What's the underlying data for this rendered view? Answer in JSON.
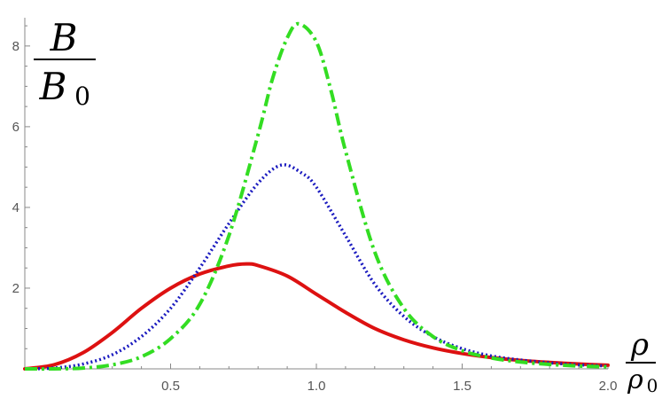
{
  "chart_data": {
    "type": "line",
    "ylabel": {
      "numerator": "B",
      "denominator_base": "B",
      "denominator_sub": "0"
    },
    "xlabel": {
      "numerator": "ρ",
      "denominator_base": "ρ",
      "denominator_sub": "0"
    },
    "xlim": [
      0,
      2.0
    ],
    "ylim": [
      0,
      8.7
    ],
    "x_ticks": [
      0.5,
      1.0,
      1.5,
      2.0
    ],
    "x_tick_labels": [
      "0.5",
      "1.0",
      "1.5",
      "2.0"
    ],
    "y_ticks": [
      2,
      4,
      6,
      8
    ],
    "y_tick_labels": [
      "2",
      "4",
      "6",
      "8"
    ],
    "grid": false,
    "series": [
      {
        "color": "#dd1111",
        "style": "solid",
        "x": [
          0,
          0.1,
          0.2,
          0.3,
          0.4,
          0.5,
          0.6,
          0.7,
          0.76,
          0.8,
          0.9,
          1.0,
          1.1,
          1.2,
          1.3,
          1.4,
          1.5,
          1.6,
          1.7,
          1.8,
          1.9,
          2.0
        ],
        "y": [
          0,
          0.1,
          0.4,
          0.9,
          1.5,
          2.0,
          2.35,
          2.55,
          2.6,
          2.56,
          2.3,
          1.85,
          1.4,
          1.0,
          0.72,
          0.52,
          0.38,
          0.28,
          0.21,
          0.16,
          0.12,
          0.09
        ]
      },
      {
        "color": "#1a1abf",
        "style": "dotted",
        "x": [
          0,
          0.1,
          0.2,
          0.3,
          0.4,
          0.5,
          0.6,
          0.7,
          0.8,
          0.88,
          0.95,
          1.0,
          1.1,
          1.2,
          1.3,
          1.4,
          1.5,
          1.6,
          1.7,
          1.8,
          1.9,
          2.0
        ],
        "y": [
          0,
          0.02,
          0.12,
          0.35,
          0.8,
          1.5,
          2.5,
          3.6,
          4.6,
          5.05,
          4.85,
          4.5,
          3.3,
          2.1,
          1.3,
          0.8,
          0.5,
          0.32,
          0.22,
          0.15,
          0.1,
          0.07
        ]
      },
      {
        "color": "#33dd22",
        "style": "dashdot",
        "x": [
          0,
          0.1,
          0.2,
          0.3,
          0.4,
          0.5,
          0.6,
          0.7,
          0.8,
          0.85,
          0.9,
          0.94,
          1.0,
          1.05,
          1.1,
          1.2,
          1.3,
          1.4,
          1.5,
          1.6,
          1.7,
          1.8,
          1.9,
          2.0
        ],
        "y": [
          0,
          0.0,
          0.02,
          0.1,
          0.3,
          0.75,
          1.6,
          3.3,
          5.8,
          7.2,
          8.2,
          8.55,
          8.1,
          6.9,
          5.4,
          2.9,
          1.5,
          0.8,
          0.45,
          0.27,
          0.17,
          0.11,
          0.07,
          0.05
        ]
      }
    ]
  }
}
